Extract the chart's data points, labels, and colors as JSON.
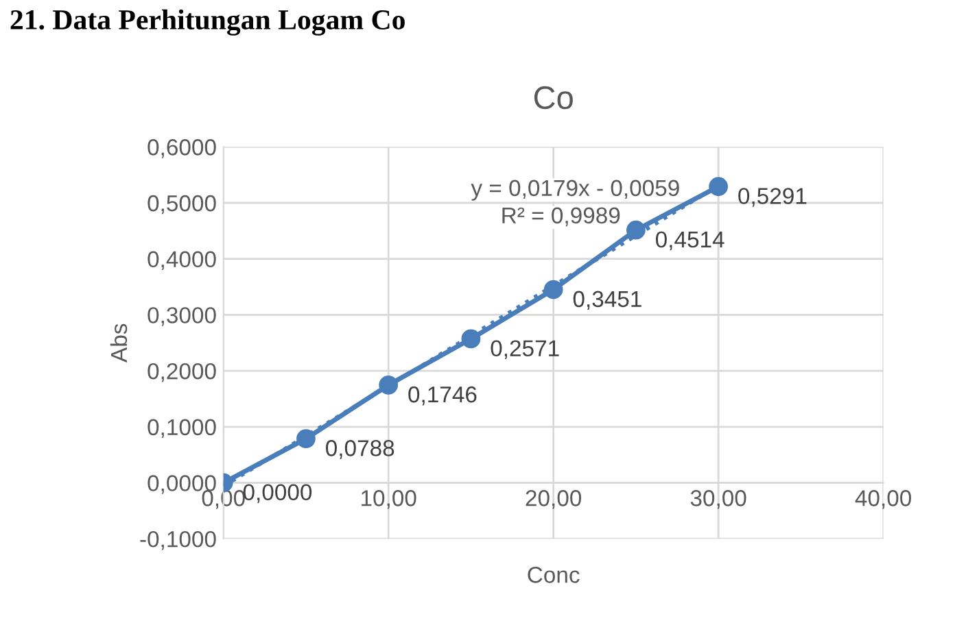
{
  "chart_data": {
    "type": "line",
    "title": "Co",
    "xlabel": "Conc",
    "ylabel": "Abs",
    "x": [
      0,
      5,
      10,
      15,
      20,
      25,
      30
    ],
    "series": [
      {
        "color": "#4a7ebb",
        "values": [
          0.0,
          0.0788,
          0.1746,
          0.2571,
          0.3451,
          0.4514,
          0.5291
        ],
        "marker": "circle",
        "line_style": "solid",
        "value_labels": [
          "0,0000",
          "0,0788",
          "0,1746",
          "0,2571",
          "0,3451",
          "0,4514",
          "0,5291"
        ]
      },
      {
        "type": "line",
        "color": "#4a7ebb",
        "x": [
          0,
          30
        ],
        "values": [
          -0.006,
          0.531
        ],
        "marker": "none",
        "line_style": "dotted"
      }
    ],
    "xlim": [
      0,
      40
    ],
    "ylim": [
      -0.1,
      0.6
    ],
    "xticks": [
      {
        "value": 0,
        "label": "0,00"
      },
      {
        "value": 10,
        "label": "10,00"
      },
      {
        "value": 20,
        "label": "20,00"
      },
      {
        "value": 30,
        "label": "30,00"
      },
      {
        "value": 40,
        "label": "40,00"
      }
    ],
    "yticks": [
      {
        "value": -0.1,
        "label": "-0,1000"
      },
      {
        "value": 0,
        "label": "0,0000"
      },
      {
        "value": 0.1,
        "label": "0,1000"
      },
      {
        "value": 0.2,
        "label": "0,2000"
      },
      {
        "value": 0.3,
        "label": "0,3000"
      },
      {
        "value": 0.4,
        "label": "0,4000"
      },
      {
        "value": 0.5,
        "label": "0,5000"
      },
      {
        "value": 0.6,
        "label": "0,6000"
      }
    ],
    "grid": true,
    "legend": false,
    "annotations": [
      "y = 0,0179x - 0,0059",
      "R² = 0,9989",
      "21. Data Perhitungan Logam Co"
    ]
  }
}
